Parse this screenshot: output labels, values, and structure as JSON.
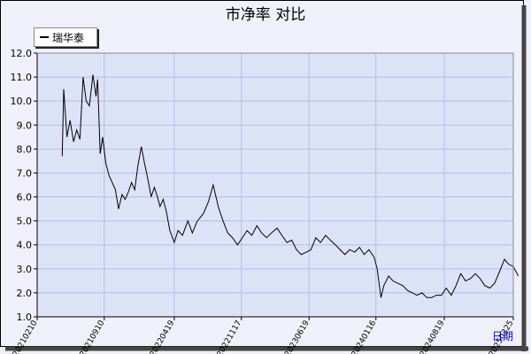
{
  "chart_data": {
    "type": "line",
    "title": "市净率  对比",
    "legend": {
      "position": "top-left",
      "entries": [
        "瑞华泰"
      ]
    },
    "xlabel": "日期",
    "ylabel": "",
    "ylim": [
      1.0,
      12.0
    ],
    "yticks": [
      "1.0",
      "2.0",
      "3.0",
      "4.0",
      "5.0",
      "6.0",
      "7.0",
      "8.0",
      "9.0",
      "10.0",
      "11.0",
      "12.0"
    ],
    "xtick_labels": [
      "20210210",
      "20210910",
      "20220419",
      "20221117",
      "20230619",
      "20240116",
      "20240819",
      "20250325"
    ],
    "grid": true,
    "series": [
      {
        "name": "瑞华泰",
        "color": "#000000",
        "points": [
          [
            "20210430",
            7.7
          ],
          [
            "20210505",
            10.5
          ],
          [
            "20210515",
            8.5
          ],
          [
            "20210525",
            9.2
          ],
          [
            "20210605",
            8.3
          ],
          [
            "20210615",
            8.8
          ],
          [
            "20210625",
            8.4
          ],
          [
            "20210705",
            11.0
          ],
          [
            "20210715",
            10.0
          ],
          [
            "20210725",
            9.8
          ],
          [
            "20210805",
            11.1
          ],
          [
            "20210815",
            10.2
          ],
          [
            "20210820",
            10.9
          ],
          [
            "20210828",
            7.8
          ],
          [
            "20210905",
            8.5
          ],
          [
            "20210915",
            7.4
          ],
          [
            "20210925",
            6.9
          ],
          [
            "20211005",
            6.6
          ],
          [
            "20211015",
            6.3
          ],
          [
            "20211025",
            5.5
          ],
          [
            "20211105",
            6.1
          ],
          [
            "20211115",
            5.9
          ],
          [
            "20211125",
            6.2
          ],
          [
            "20211205",
            6.6
          ],
          [
            "20211215",
            6.3
          ],
          [
            "20211225",
            7.3
          ],
          [
            "20220105",
            8.1
          ],
          [
            "20220115",
            7.4
          ],
          [
            "20220125",
            6.8
          ],
          [
            "20220205",
            6.0
          ],
          [
            "20220215",
            6.4
          ],
          [
            "20220225",
            6.0
          ],
          [
            "20220305",
            5.6
          ],
          [
            "20220315",
            5.9
          ],
          [
            "20220325",
            5.4
          ],
          [
            "20220405",
            4.6
          ],
          [
            "20220419",
            4.1
          ],
          [
            "20220501",
            4.6
          ],
          [
            "20220515",
            4.4
          ],
          [
            "20220601",
            5.0
          ],
          [
            "20220615",
            4.5
          ],
          [
            "20220701",
            5.0
          ],
          [
            "20220720",
            5.3
          ],
          [
            "20220805",
            5.8
          ],
          [
            "20220820",
            6.5
          ],
          [
            "20220905",
            5.6
          ],
          [
            "20220920",
            5.0
          ],
          [
            "20221005",
            4.5
          ],
          [
            "20221020",
            4.3
          ],
          [
            "20221105",
            4.0
          ],
          [
            "20221120",
            4.3
          ],
          [
            "20221205",
            4.6
          ],
          [
            "20221220",
            4.4
          ],
          [
            "20230105",
            4.8
          ],
          [
            "20230120",
            4.5
          ],
          [
            "20230205",
            4.3
          ],
          [
            "20230220",
            4.5
          ],
          [
            "20230310",
            4.7
          ],
          [
            "20230325",
            4.4
          ],
          [
            "20230410",
            4.1
          ],
          [
            "20230425",
            4.2
          ],
          [
            "20230510",
            3.8
          ],
          [
            "20230525",
            3.6
          ],
          [
            "20230610",
            3.7
          ],
          [
            "20230625",
            3.8
          ],
          [
            "20230710",
            4.3
          ],
          [
            "20230725",
            4.1
          ],
          [
            "20230810",
            4.4
          ],
          [
            "20230825",
            4.2
          ],
          [
            "20230910",
            4.0
          ],
          [
            "20230925",
            3.8
          ],
          [
            "20231010",
            3.6
          ],
          [
            "20231025",
            3.8
          ],
          [
            "20231110",
            3.7
          ],
          [
            "20231125",
            3.9
          ],
          [
            "20231210",
            3.6
          ],
          [
            "20231225",
            3.8
          ],
          [
            "20240110",
            3.5
          ],
          [
            "20240120",
            3.0
          ],
          [
            "20240201",
            1.8
          ],
          [
            "20240210",
            2.3
          ],
          [
            "20240225",
            2.7
          ],
          [
            "20240310",
            2.5
          ],
          [
            "20240325",
            2.4
          ],
          [
            "20240410",
            2.3
          ],
          [
            "20240425",
            2.1
          ],
          [
            "20240510",
            2.0
          ],
          [
            "20240525",
            1.9
          ],
          [
            "20240610",
            2.0
          ],
          [
            "20240625",
            1.8
          ],
          [
            "20240710",
            1.8
          ],
          [
            "20240725",
            1.9
          ],
          [
            "20240810",
            1.9
          ],
          [
            "20240825",
            2.2
          ],
          [
            "20240910",
            1.9
          ],
          [
            "20240925",
            2.3
          ],
          [
            "20241010",
            2.8
          ],
          [
            "20241025",
            2.5
          ],
          [
            "20241110",
            2.6
          ],
          [
            "20241125",
            2.8
          ],
          [
            "20241210",
            2.6
          ],
          [
            "20241225",
            2.3
          ],
          [
            "20250110",
            2.2
          ],
          [
            "20250125",
            2.4
          ],
          [
            "20250210",
            2.9
          ],
          [
            "20250225",
            3.4
          ],
          [
            "20250310",
            3.2
          ],
          [
            "20250325",
            3.1
          ],
          [
            "20250410",
            2.7
          ]
        ]
      }
    ]
  },
  "colors": {
    "plot_bg": "#dde3f7",
    "grid": "#b3bde3",
    "axis": "#000000",
    "outer_bg": "#f0f0fb",
    "xlabel": "#0000cc"
  }
}
